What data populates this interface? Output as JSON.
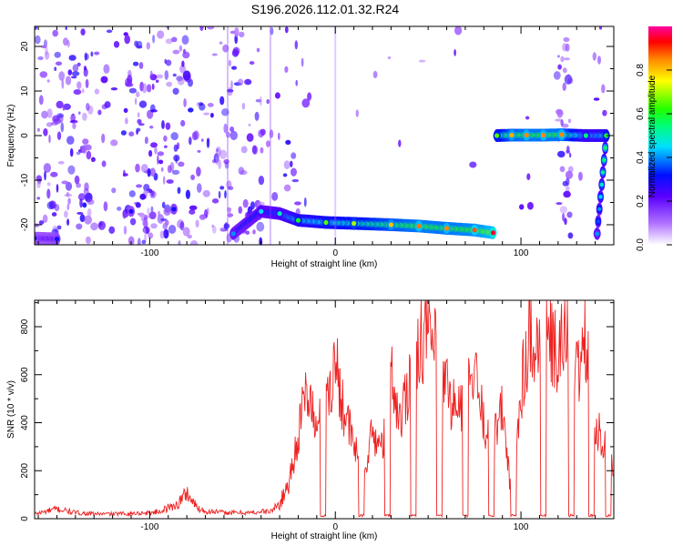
{
  "figure": {
    "title": "S196.2026.112.01.32.R24"
  },
  "chart_data": [
    {
      "type": "heatmap",
      "xlabel": "Height of straight line (km)",
      "ylabel": "Frequency (Hz)",
      "xlim": [
        -162,
        150
      ],
      "ylim": [
        -24.5,
        24.5
      ],
      "xticks": [
        -100,
        0,
        100
      ],
      "yticks": [
        -20,
        -10,
        0,
        10,
        20
      ],
      "colorbar": {
        "label": "Normalized spectral amplitude",
        "range": [
          0,
          1
        ],
        "ticks": [
          0.0,
          0.2,
          0.4,
          0.6,
          0.8
        ]
      },
      "features": {
        "lower_band": [
          {
            "x": -162,
            "y": -23.0,
            "amp": 0.28
          },
          {
            "x": -150,
            "y": -23.2,
            "amp": 0.3
          },
          {
            "x": -110,
            "y": -17.0,
            "amp": 0.28
          },
          {
            "x": -87,
            "y": -16.5,
            "amp": 0.3
          },
          {
            "x": -55,
            "y": -22.0,
            "amp": 0.4
          },
          {
            "x": -40,
            "y": -17.0,
            "amp": 0.45
          },
          {
            "x": -30,
            "y": -17.5,
            "amp": 0.5
          },
          {
            "x": -20,
            "y": -19.0,
            "amp": 0.6
          },
          {
            "x": -5,
            "y": -19.5,
            "amp": 0.65
          },
          {
            "x": 10,
            "y": -19.7,
            "amp": 0.7
          },
          {
            "x": 30,
            "y": -20.0,
            "amp": 0.8
          },
          {
            "x": 45,
            "y": -20.3,
            "amp": 0.86
          },
          {
            "x": 60,
            "y": -20.8,
            "amp": 0.85
          },
          {
            "x": 75,
            "y": -21.2,
            "amp": 0.88
          },
          {
            "x": 85,
            "y": -21.8,
            "amp": 0.95
          }
        ],
        "upper_band": [
          {
            "x": 87,
            "y": 0.0,
            "amp": 0.65
          },
          {
            "x": 95,
            "y": 0.1,
            "amp": 0.82
          },
          {
            "x": 103,
            "y": 0.1,
            "amp": 0.85
          },
          {
            "x": 112,
            "y": 0.1,
            "amp": 0.85
          },
          {
            "x": 122,
            "y": 0.2,
            "amp": 0.85
          },
          {
            "x": 135,
            "y": 0.0,
            "amp": 0.55
          },
          {
            "x": 146,
            "y": 0.0,
            "amp": 0.6
          },
          {
            "x": 141,
            "y": -22.0,
            "amp": 0.4
          }
        ]
      }
    },
    {
      "type": "line",
      "xlabel": "Height of straight line (km)",
      "ylabel": "SNR (10 * v/v)",
      "xlim": [
        -162,
        150
      ],
      "ylim": [
        0,
        910
      ],
      "xticks": [
        -100,
        0,
        100
      ],
      "yticks": [
        0,
        200,
        400,
        600,
        800
      ],
      "line_color": "#ee2222",
      "series": [
        {
          "x": [
            -162,
            -150,
            -140,
            -130,
            -120,
            -110,
            -100,
            -95,
            -90,
            -85,
            -80,
            -75,
            -70,
            -65,
            -60,
            -55,
            -50,
            -45,
            -40,
            -35,
            -30,
            -25,
            -20,
            -15,
            -10,
            -5,
            0,
            5,
            10,
            15,
            20,
            25,
            30,
            35,
            40,
            45,
            50,
            55,
            60,
            65,
            70,
            75,
            80,
            85,
            90,
            95,
            100,
            105,
            110,
            115,
            120,
            125,
            130,
            135,
            140,
            145,
            150
          ],
          "y": [
            20,
            40,
            25,
            20,
            20,
            22,
            25,
            30,
            45,
            60,
            110,
            50,
            30,
            30,
            25,
            25,
            25,
            25,
            30,
            30,
            60,
            150,
            350,
            550,
            350,
            500,
            650,
            450,
            300,
            200,
            350,
            300,
            600,
            400,
            600,
            750,
            800,
            650,
            550,
            450,
            500,
            600,
            400,
            350,
            450,
            100,
            550,
            800,
            700,
            750,
            650,
            800,
            600,
            750,
            400,
            300,
            200
          ]
        }
      ],
      "dropouts": [
        -6.5,
        14,
        28,
        42,
        56,
        70,
        84,
        96,
        112,
        127,
        138,
        147
      ]
    }
  ]
}
